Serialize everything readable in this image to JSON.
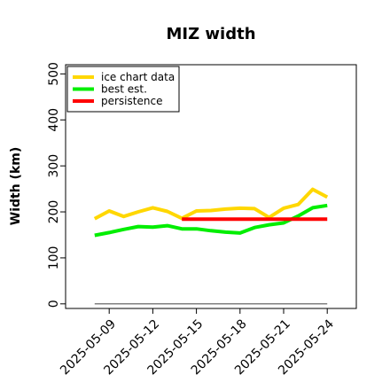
{
  "chart_data": {
    "type": "line",
    "title": "MIZ width",
    "xlabel": "",
    "ylabel": "Width (km)",
    "ylim": [
      -10,
      520
    ],
    "xlim": [
      "2025-05-06",
      "2025-05-26"
    ],
    "grid": false,
    "legend": "top-left",
    "yticks": [
      0,
      100,
      200,
      300,
      400,
      500
    ],
    "xticks": [
      "2025-05-09",
      "2025-05-12",
      "2025-05-15",
      "2025-05-18",
      "2025-05-21",
      "2025-05-24"
    ],
    "series": [
      {
        "name": "ice chart data",
        "color": "#FFD700",
        "x": [
          "2025-05-08",
          "2025-05-09",
          "2025-05-10",
          "2025-05-11",
          "2025-05-12",
          "2025-05-13",
          "2025-05-14",
          "2025-05-15",
          "2025-05-16",
          "2025-05-17",
          "2025-05-18",
          "2025-05-19",
          "2025-05-20",
          "2025-05-21",
          "2025-05-22",
          "2025-05-23",
          "2025-05-24"
        ],
        "y": [
          185,
          202,
          190,
          200,
          209,
          201,
          186,
          202,
          203,
          206,
          208,
          207,
          188,
          208,
          216,
          249,
          232
        ]
      },
      {
        "name": "best est.",
        "color": "#00EE00",
        "x": [
          "2025-05-08",
          "2025-05-09",
          "2025-05-10",
          "2025-05-11",
          "2025-05-12",
          "2025-05-13",
          "2025-05-14",
          "2025-05-15",
          "2025-05-16",
          "2025-05-17",
          "2025-05-18",
          "2025-05-19",
          "2025-05-20",
          "2025-05-21",
          "2025-05-22",
          "2025-05-23",
          "2025-05-24"
        ],
        "y": [
          149,
          155,
          162,
          168,
          167,
          170,
          163,
          163,
          159,
          156,
          154,
          166,
          172,
          176,
          191,
          209,
          214
        ]
      },
      {
        "name": "persistence",
        "color": "#FF0000",
        "x": [
          "2025-05-14",
          "2025-05-24"
        ],
        "y": [
          184,
          184
        ]
      },
      {
        "name": "",
        "color": "#808080",
        "x": [
          "2025-05-08",
          "2025-05-24"
        ],
        "y": [
          0,
          0
        ]
      }
    ]
  }
}
